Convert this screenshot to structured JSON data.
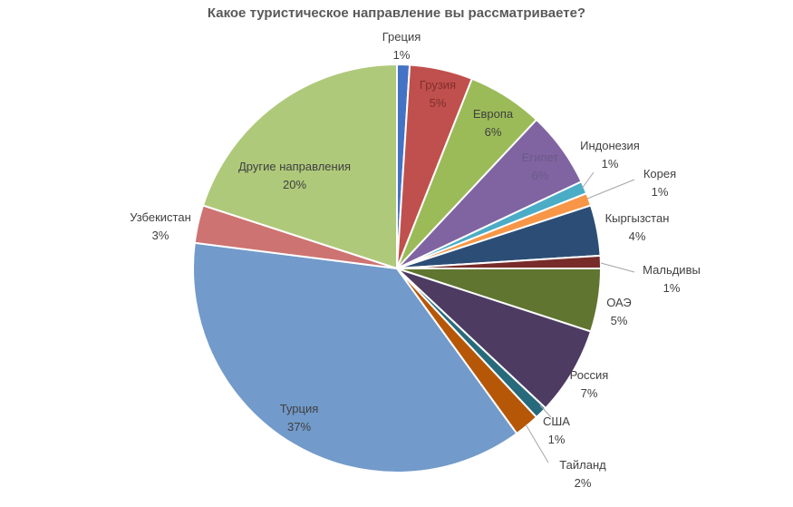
{
  "chart_data": {
    "type": "pie",
    "title": "Какое туристическое направление вы рассматриваете?",
    "slices": [
      {
        "label": "Греция",
        "value": 1,
        "value_label": "1%",
        "color": "#4472C4"
      },
      {
        "label": "Грузия",
        "value": 5,
        "value_label": "5%",
        "color": "#C0504D"
      },
      {
        "label": "Европа",
        "value": 6,
        "value_label": "6%",
        "color": "#9BBB59"
      },
      {
        "label": "Египет",
        "value": 6,
        "value_label": "6%",
        "color": "#8064A2"
      },
      {
        "label": "Индонезия",
        "value": 1,
        "value_label": "1%",
        "color": "#4BACC6"
      },
      {
        "label": "Корея",
        "value": 1,
        "value_label": "1%",
        "color": "#F79646"
      },
      {
        "label": "Кыргызстан",
        "value": 4,
        "value_label": "4%",
        "color": "#2C4D75"
      },
      {
        "label": "Мальдивы",
        "value": 1,
        "value_label": "1%",
        "color": "#772C2A"
      },
      {
        "label": "ОАЭ",
        "value": 5,
        "value_label": "5%",
        "color": "#5F7530"
      },
      {
        "label": "Россия",
        "value": 7,
        "value_label": "7%",
        "color": "#4D3B62"
      },
      {
        "label": "США",
        "value": 1,
        "value_label": "1%",
        "color": "#276A7C"
      },
      {
        "label": "Тайланд",
        "value": 2,
        "value_label": "2%",
        "color": "#B65708"
      },
      {
        "label": "Турция",
        "value": 37,
        "value_label": "37%",
        "color": "#729ACA"
      },
      {
        "label": "Узбекистан",
        "value": 3,
        "value_label": "3%",
        "color": "#CD7371"
      },
      {
        "label": "Другие направления",
        "value": 20,
        "value_label": "20%",
        "color": "#AFC97A"
      }
    ],
    "legend": "none",
    "start_angle": "12 o'clock",
    "direction": "clockwise",
    "data_labels": "category name and percentage"
  }
}
